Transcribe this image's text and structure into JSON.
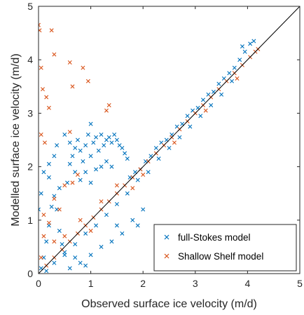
{
  "chart_data": {
    "type": "scatter",
    "title": "",
    "xlabel": "Observed surface ice velocity (m/d)",
    "ylabel": "Modelled surface ice velocity (m/d)",
    "xlim": [
      0,
      5
    ],
    "ylim": [
      0,
      5
    ],
    "xticks": [
      "0",
      "1",
      "2",
      "3",
      "4",
      "5"
    ],
    "yticks": [
      "0",
      "1",
      "2",
      "3",
      "4",
      "5"
    ],
    "grid": false,
    "legend_position": "bottom-right",
    "reference_line": {
      "x": [
        0,
        5
      ],
      "y": [
        0,
        5
      ],
      "color": "#000000"
    },
    "series": [
      {
        "name": "full-Stokes model",
        "marker": "x",
        "color": "#0072BD",
        "points": [
          [
            0.05,
            0.1
          ],
          [
            0.1,
            0.3
          ],
          [
            0.15,
            0.6
          ],
          [
            0.2,
            0.9
          ],
          [
            0.25,
            1.25
          ],
          [
            0.3,
            1.45
          ],
          [
            0.35,
            1.2
          ],
          [
            0.4,
            0.8
          ],
          [
            0.45,
            0.55
          ],
          [
            0.5,
            0.35
          ],
          [
            0.55,
            1.7
          ],
          [
            0.6,
            2.05
          ],
          [
            0.65,
            2.2
          ],
          [
            0.7,
            2.35
          ],
          [
            0.75,
            2.5
          ],
          [
            0.8,
            2.3
          ],
          [
            0.85,
            2.1
          ],
          [
            0.9,
            2.4
          ],
          [
            0.95,
            2.6
          ],
          [
            1.0,
            2.2
          ],
          [
            1.05,
            2.45
          ],
          [
            1.1,
            2.55
          ],
          [
            1.15,
            2.3
          ],
          [
            1.2,
            2.6
          ],
          [
            1.25,
            2.4
          ],
          [
            1.3,
            2.5
          ],
          [
            1.35,
            2.55
          ],
          [
            1.4,
            2.45
          ],
          [
            1.45,
            2.6
          ],
          [
            1.5,
            2.5
          ],
          [
            1.55,
            2.4
          ],
          [
            1.6,
            2.35
          ],
          [
            1.65,
            2.25
          ],
          [
            1.7,
            2.15
          ],
          [
            0.5,
            2.6
          ],
          [
            0.6,
            2.45
          ],
          [
            0.7,
            1.9
          ],
          [
            0.8,
            1.75
          ],
          [
            0.9,
            1.9
          ],
          [
            1.0,
            1.7
          ],
          [
            1.1,
            1.95
          ],
          [
            1.2,
            2.0
          ],
          [
            1.3,
            2.1
          ],
          [
            1.4,
            2.0
          ],
          [
            0.4,
            1.6
          ],
          [
            0.3,
            2.2
          ],
          [
            0.2,
            2.05
          ],
          [
            0.35,
            2.4
          ],
          [
            1.0,
            2.8
          ],
          [
            0.2,
            1.8
          ],
          [
            0.6,
            0.1
          ],
          [
            0.8,
            0.2
          ],
          [
            1.0,
            0.35
          ],
          [
            1.2,
            0.5
          ],
          [
            1.4,
            0.6
          ],
          [
            1.5,
            0.9
          ],
          [
            0.9,
            0.15
          ],
          [
            0.7,
            0.3
          ],
          [
            1.6,
            0.75
          ],
          [
            1.8,
            1.0
          ],
          [
            1.75,
            1.8
          ],
          [
            1.85,
            1.9
          ],
          [
            1.95,
            1.95
          ],
          [
            2.05,
            2.1
          ],
          [
            2.15,
            2.2
          ],
          [
            2.25,
            2.35
          ],
          [
            2.35,
            2.45
          ],
          [
            2.45,
            2.5
          ],
          [
            2.55,
            2.6
          ],
          [
            2.65,
            2.75
          ],
          [
            2.75,
            2.8
          ],
          [
            2.85,
            2.95
          ],
          [
            2.95,
            3.05
          ],
          [
            3.05,
            3.1
          ],
          [
            3.15,
            3.25
          ],
          [
            3.25,
            3.35
          ],
          [
            3.35,
            3.4
          ],
          [
            3.45,
            3.55
          ],
          [
            3.55,
            3.65
          ],
          [
            3.65,
            3.75
          ],
          [
            3.75,
            3.85
          ],
          [
            3.85,
            4.0
          ],
          [
            3.95,
            4.15
          ],
          [
            4.05,
            4.3
          ],
          [
            4.12,
            4.35
          ],
          [
            3.9,
            4.25
          ],
          [
            3.7,
            3.6
          ],
          [
            3.5,
            3.35
          ],
          [
            3.3,
            3.15
          ],
          [
            3.1,
            2.95
          ],
          [
            2.9,
            2.75
          ],
          [
            2.7,
            2.55
          ],
          [
            2.5,
            2.35
          ],
          [
            2.3,
            2.15
          ],
          [
            2.1,
            1.9
          ],
          [
            1.9,
            1.75
          ],
          [
            1.7,
            1.5
          ],
          [
            1.5,
            1.3
          ],
          [
            1.3,
            1.1
          ],
          [
            1.1,
            0.9
          ],
          [
            0.9,
            0.75
          ],
          [
            0.7,
            0.55
          ],
          [
            0.5,
            0.4
          ],
          [
            0.3,
            0.2
          ],
          [
            0.15,
            0.05
          ],
          [
            0.05,
            1.5
          ],
          [
            0.1,
            1.9
          ],
          [
            0.0,
            1.2
          ],
          [
            1.9,
            0.9
          ],
          [
            2.0,
            1.2
          ]
        ]
      },
      {
        "name": "Shallow Shelf model",
        "marker": "x",
        "color": "#D95319",
        "points": [
          [
            0.0,
            4.65
          ],
          [
            0.02,
            4.55
          ],
          [
            0.05,
            3.85
          ],
          [
            0.08,
            3.45
          ],
          [
            0.25,
            4.55
          ],
          [
            0.3,
            4.1
          ],
          [
            0.15,
            3.3
          ],
          [
            0.2,
            3.1
          ],
          [
            0.05,
            2.6
          ],
          [
            0.12,
            2.45
          ],
          [
            0.6,
            3.95
          ],
          [
            0.65,
            3.5
          ],
          [
            0.85,
            3.85
          ],
          [
            0.95,
            3.6
          ],
          [
            1.3,
            3.05
          ],
          [
            1.35,
            3.15
          ],
          [
            0.6,
            2.65
          ],
          [
            0.75,
            1.85
          ],
          [
            0.65,
            1.7
          ],
          [
            0.5,
            1.65
          ],
          [
            0.3,
            1.4
          ],
          [
            0.4,
            1.2
          ],
          [
            0.2,
            0.95
          ],
          [
            0.1,
            0.7
          ],
          [
            0.05,
            0.3
          ],
          [
            0.15,
            0.15
          ],
          [
            0.3,
            0.3
          ],
          [
            0.45,
            0.45
          ],
          [
            0.6,
            0.6
          ],
          [
            0.75,
            0.75
          ],
          [
            0.9,
            0.9
          ],
          [
            1.05,
            1.05
          ],
          [
            1.2,
            1.2
          ],
          [
            1.35,
            1.35
          ],
          [
            1.5,
            1.5
          ],
          [
            1.65,
            1.65
          ],
          [
            1.8,
            1.8
          ],
          [
            1.95,
            1.95
          ],
          [
            2.1,
            2.1
          ],
          [
            2.25,
            2.25
          ],
          [
            2.4,
            2.4
          ],
          [
            2.55,
            2.55
          ],
          [
            2.7,
            2.7
          ],
          [
            2.85,
            2.85
          ],
          [
            3.0,
            3.0
          ],
          [
            3.15,
            3.15
          ],
          [
            3.3,
            3.3
          ],
          [
            3.45,
            3.45
          ],
          [
            3.6,
            3.6
          ],
          [
            3.75,
            3.75
          ],
          [
            3.9,
            3.9
          ],
          [
            4.05,
            4.05
          ],
          [
            4.15,
            4.15
          ],
          [
            4.2,
            4.2
          ],
          [
            1.2,
            1.35
          ],
          [
            1.5,
            1.65
          ],
          [
            0.8,
            1.0
          ],
          [
            0.5,
            0.7
          ],
          [
            0.3,
            0.6
          ],
          [
            0.1,
            1.1
          ],
          [
            2.0,
            1.85
          ],
          [
            2.6,
            2.45
          ],
          [
            3.2,
            3.05
          ],
          [
            3.8,
            3.65
          ],
          [
            1.8,
            1.6
          ],
          [
            1.0,
            0.8
          ]
        ]
      }
    ]
  }
}
